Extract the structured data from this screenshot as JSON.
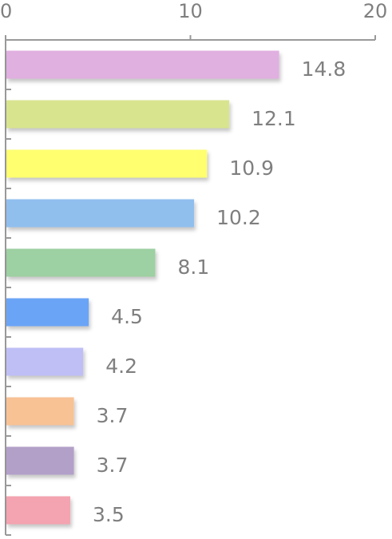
{
  "chart_data": {
    "type": "bar",
    "orientation": "horizontal",
    "title": "",
    "xlabel": "",
    "ylabel": "",
    "xlim": [
      0,
      20
    ],
    "x_ticks": [
      0,
      10,
      20
    ],
    "axis_position": "top",
    "grid": false,
    "legend": "none",
    "values": [
      14.8,
      12.1,
      10.9,
      10.2,
      8.1,
      4.5,
      4.2,
      3.7,
      3.7,
      3.5
    ],
    "value_labels": [
      "14.8",
      "12.1",
      "10.9",
      "10.2",
      "8.1",
      "4.5",
      "4.2",
      "3.7",
      "3.7",
      "3.5"
    ],
    "colors": [
      "#e0b0e0",
      "#d9e48e",
      "#ffff70",
      "#90bfee",
      "#9dd0a2",
      "#6ba4f6",
      "#bfbff6",
      "#f8c295",
      "#b3a0c9",
      "#f4a3b0"
    ],
    "axis_color": "#999999",
    "label_color": "#7f7f7f"
  }
}
